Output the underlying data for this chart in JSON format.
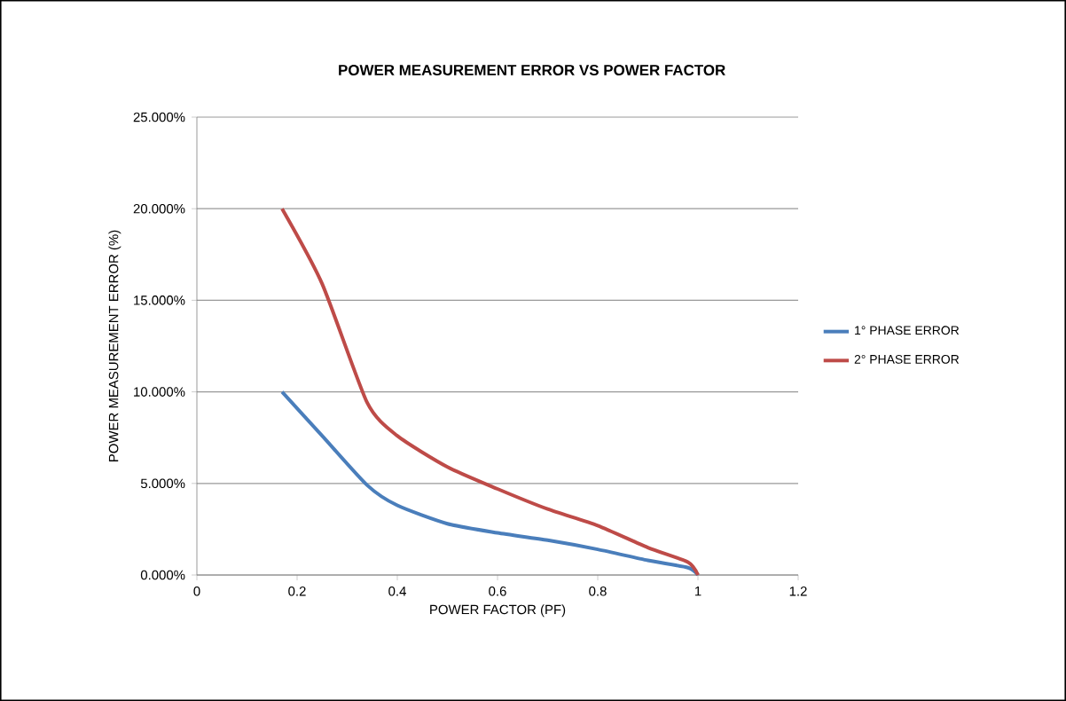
{
  "chart_data": {
    "type": "line",
    "title": "POWER MEASUREMENT ERROR VS POWER FACTOR",
    "xlabel": "POWER FACTOR (PF)",
    "ylabel": "POWER MEASUREMENT ERROR (%)",
    "series": [
      {
        "name": "1° PHASE ERROR",
        "color": "#4a7ebb",
        "x": [
          0.17,
          0.25,
          0.34,
          0.4,
          0.5,
          0.6,
          0.7,
          0.8,
          0.9,
          0.98,
          1
        ],
        "values": [
          10,
          7.6,
          4.9,
          3.8,
          2.8,
          2.3,
          1.9,
          1.4,
          0.8,
          0.4,
          0
        ]
      },
      {
        "name": "2° PHASE ERROR",
        "color": "#be4b48",
        "x": [
          0.17,
          0.25,
          0.34,
          0.4,
          0.5,
          0.6,
          0.7,
          0.8,
          0.9,
          0.98,
          1
        ],
        "values": [
          20,
          15.9,
          9.4,
          7.6,
          5.9,
          4.7,
          3.6,
          2.7,
          1.5,
          0.7,
          0
        ]
      }
    ],
    "xlim": [
      0,
      1.2
    ],
    "xticks": [
      0,
      0.2,
      0.4,
      0.6,
      0.8,
      1,
      1.2
    ],
    "ylim": [
      0,
      25
    ],
    "yticks": [
      {
        "value": 0,
        "label": "0.000%"
      },
      {
        "value": 5,
        "label": "5.000%"
      },
      {
        "value": 10,
        "label": "10.000%"
      },
      {
        "value": 15,
        "label": "15.000%"
      },
      {
        "value": 20,
        "label": "20.000%"
      },
      {
        "value": 25,
        "label": "25.000%"
      }
    ],
    "grid": "y",
    "legend": "right",
    "marker": "none",
    "line_style": "solid"
  }
}
